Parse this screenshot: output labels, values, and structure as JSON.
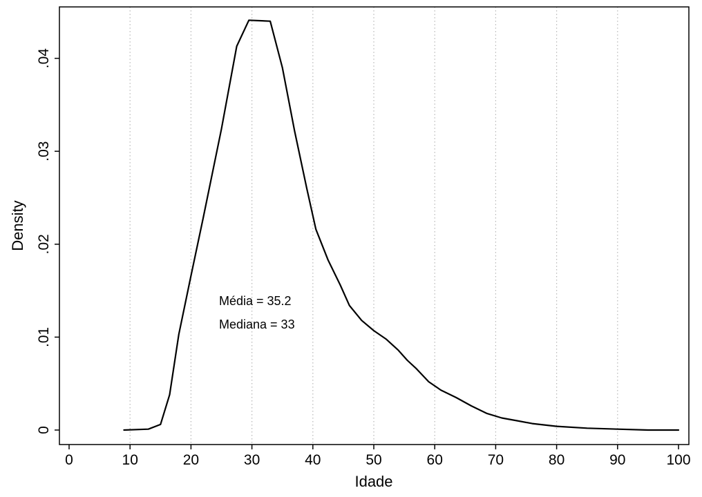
{
  "chart_data": {
    "type": "line",
    "title": "",
    "xlabel": "Idade",
    "ylabel": "Density",
    "xlim": [
      0,
      100
    ],
    "ylim": [
      0,
      0.044
    ],
    "x_ticks": [
      0,
      10,
      20,
      30,
      40,
      50,
      60,
      70,
      80,
      90,
      100
    ],
    "x_tick_labels": [
      "0",
      "10",
      "20",
      "30",
      "40",
      "50",
      "60",
      "70",
      "80",
      "90",
      "100"
    ],
    "y_ticks": [
      0,
      0.01,
      0.02,
      0.03,
      0.04
    ],
    "y_tick_labels": [
      "0",
      ".01",
      ".02",
      ".03",
      ".04"
    ],
    "grid": "vertical dotted",
    "series": [
      {
        "color": "#000000",
        "x": [
          9,
          13,
          15,
          16.5,
          18,
          20,
          22,
          25,
          27.5,
          29.5,
          33,
          35,
          37,
          39,
          40.5,
          42.5,
          44.5,
          46,
          48,
          50,
          52,
          54,
          55.5,
          57,
          59,
          61,
          63.5,
          66,
          68.5,
          71,
          73.5,
          76,
          80,
          85,
          90,
          95,
          100
        ],
        "y": [
          0.0,
          0.0001,
          0.0006,
          0.0038,
          0.0103,
          0.0166,
          0.0228,
          0.0324,
          0.0413,
          0.0441,
          0.044,
          0.039,
          0.0322,
          0.026,
          0.0216,
          0.0183,
          0.0156,
          0.0134,
          0.0118,
          0.0107,
          0.0098,
          0.0086,
          0.0075,
          0.0066,
          0.0052,
          0.0043,
          0.0035,
          0.0026,
          0.0018,
          0.0013,
          0.001,
          0.0007,
          0.0004,
          0.0002,
          0.0001,
          0.0,
          0.0
        ]
      }
    ],
    "annotations": [
      "Média = 35.2",
      "Mediana = 33"
    ]
  }
}
